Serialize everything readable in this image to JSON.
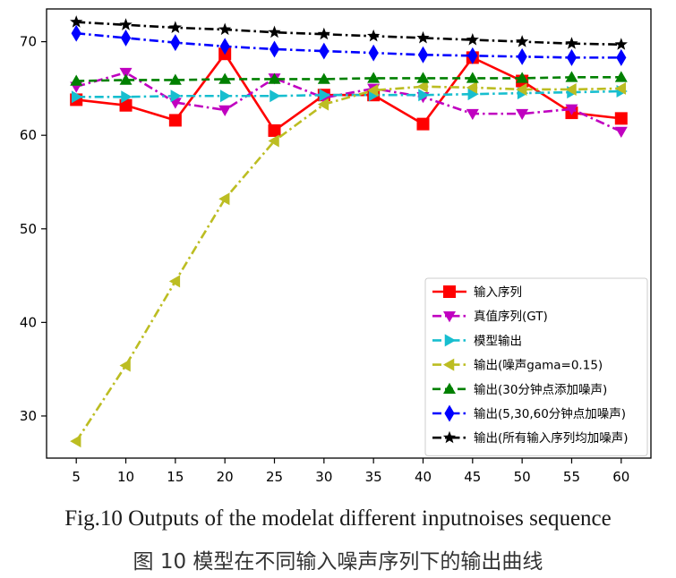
{
  "chart_data": {
    "type": "line",
    "x": [
      5,
      10,
      15,
      20,
      25,
      30,
      35,
      40,
      45,
      50,
      55,
      60
    ],
    "xticks": [
      "5",
      "10",
      "15",
      "20",
      "25",
      "30",
      "35",
      "40",
      "45",
      "50",
      "55",
      "60"
    ],
    "yticks": [
      "30",
      "40",
      "50",
      "60",
      "70"
    ],
    "ylim": [
      25.5,
      73.5
    ],
    "xlim": [
      2.0,
      63.0
    ],
    "grid": false,
    "legend_position": "lower-right",
    "series": [
      {
        "name": "输入序列",
        "color": "#ff0000",
        "marker": "square",
        "dash": "solid",
        "values": [
          63.8,
          63.2,
          61.6,
          68.7,
          60.5,
          64.3,
          64.3,
          61.2,
          68.3,
          65.8,
          62.4,
          61.8
        ]
      },
      {
        "name": "真值序列(GT)",
        "color": "#c000c0",
        "marker": "tri-down",
        "dash": "dashdot",
        "values": [
          65.2,
          66.7,
          63.5,
          62.7,
          66.1,
          64.0,
          65.0,
          64.1,
          62.3,
          62.3,
          62.8,
          60.4
        ]
      },
      {
        "name": "模型输出",
        "color": "#17becf",
        "marker": "tri-right",
        "dash": "dashdot",
        "values": [
          64.1,
          64.1,
          64.2,
          64.2,
          64.2,
          64.3,
          64.3,
          64.3,
          64.4,
          64.5,
          64.6,
          64.7
        ]
      },
      {
        "name": "输出(噪声gama=0.15)",
        "color": "#bcbd22",
        "marker": "tri-left",
        "dash": "dashdot",
        "values": [
          27.3,
          35.4,
          44.4,
          53.2,
          59.4,
          63.3,
          64.8,
          65.2,
          65.1,
          64.9,
          64.9,
          65.0
        ]
      },
      {
        "name": "输出(30分钟点添加噪声)",
        "color": "#008000",
        "marker": "tri-up",
        "dash": "dashed",
        "values": [
          65.8,
          65.9,
          65.9,
          66.0,
          66.0,
          66.0,
          66.1,
          66.1,
          66.1,
          66.1,
          66.2,
          66.2
        ]
      },
      {
        "name": "输出(5,30,60分钟点加噪声)",
        "color": "#0000ff",
        "marker": "diamond",
        "dash": "dashdot",
        "values": [
          70.9,
          70.4,
          69.9,
          69.5,
          69.2,
          69.0,
          68.8,
          68.6,
          68.5,
          68.4,
          68.3,
          68.3
        ]
      },
      {
        "name": "输出(所有输入序列均加噪声)",
        "color": "#000000",
        "marker": "star",
        "dash": "dashdot",
        "values": [
          72.1,
          71.8,
          71.5,
          71.3,
          71.0,
          70.8,
          70.6,
          70.4,
          70.2,
          70.0,
          69.8,
          69.7
        ]
      }
    ]
  },
  "caption": {
    "english": "Fig.10    Outputs of the modelat different inputnoises sequence",
    "chinese": "图 10    模型在不同输入噪声序列下的输出曲线"
  }
}
